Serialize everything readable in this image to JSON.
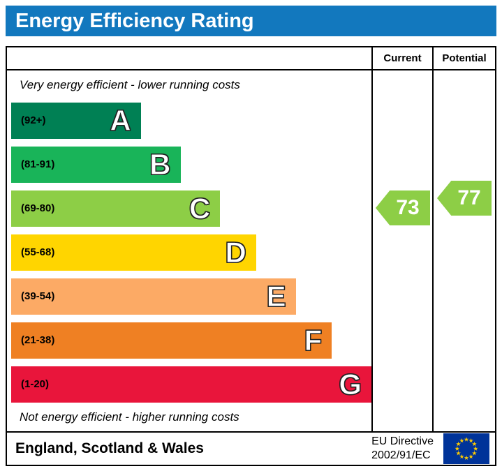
{
  "header": {
    "title": "Energy Efficiency Rating",
    "bg_color": "#1278be"
  },
  "columns": {
    "current": "Current",
    "potential": "Potential"
  },
  "notes": {
    "top": "Very energy efficient - lower running costs",
    "bottom": "Not energy efficient - higher running costs"
  },
  "bands": [
    {
      "letter": "A",
      "range": "(92+)",
      "color": "#008054",
      "width_pct": 36
    },
    {
      "letter": "B",
      "range": "(81-91)",
      "color": "#19b459",
      "width_pct": 47
    },
    {
      "letter": "C",
      "range": "(69-80)",
      "color": "#8dce46",
      "width_pct": 58
    },
    {
      "letter": "D",
      "range": "(55-68)",
      "color": "#ffd500",
      "width_pct": 68
    },
    {
      "letter": "E",
      "range": "(39-54)",
      "color": "#fcaa65",
      "width_pct": 79
    },
    {
      "letter": "F",
      "range": "(21-38)",
      "color": "#ef8023",
      "width_pct": 89
    },
    {
      "letter": "G",
      "range": "(1-20)",
      "color": "#e9153b",
      "width_pct": 100
    }
  ],
  "ratings": {
    "current": {
      "value": "73",
      "band": "C",
      "color": "#8dce46"
    },
    "potential": {
      "value": "77",
      "band": "C",
      "color": "#8dce46"
    }
  },
  "footer": {
    "region": "England, Scotland & Wales",
    "directive": [
      "EU Directive",
      "2002/91/EC"
    ],
    "flag_bg": "#003399",
    "flag_star_color": "#ffcc00"
  },
  "chart_data": {
    "type": "bar",
    "title": "Energy Efficiency Rating",
    "categories": [
      "A (92+)",
      "B (81-91)",
      "C (69-80)",
      "D (55-68)",
      "E (39-54)",
      "F (21-38)",
      "G (1-20)"
    ],
    "values": [
      36,
      47,
      58,
      68,
      79,
      89,
      100
    ],
    "value_note": "relative bar widths, percent of band column",
    "band_colors": [
      "#008054",
      "#19b459",
      "#8dce46",
      "#ffd500",
      "#fcaa65",
      "#ef8023",
      "#e9153b"
    ],
    "current_rating": 73,
    "current_band": "C",
    "potential_rating": 77,
    "potential_band": "C",
    "annotations": [
      "Very energy efficient - lower running costs",
      "Not energy efficient - higher running costs"
    ],
    "legend_position": "none",
    "region_label": "England, Scotland & Wales",
    "directive_label": "EU Directive 2002/91/EC"
  }
}
